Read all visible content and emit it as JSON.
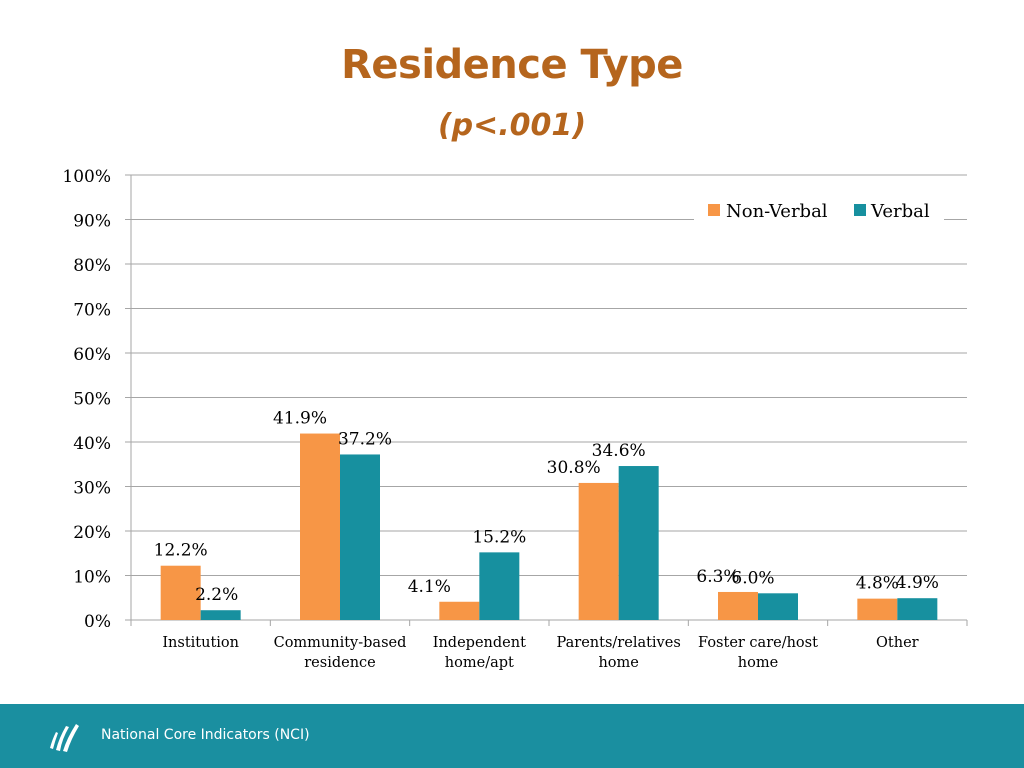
{
  "slide": {
    "title": "Residence Type",
    "subtitle": "p<.001",
    "footer_text": "National Core Indicators (NCI)"
  },
  "colors": {
    "title": "#b5651d",
    "non_verbal": "#f79646",
    "verbal": "#17909f",
    "footer": "#1a8fa0",
    "grid": "#a6a6a6"
  },
  "chart_data": {
    "type": "bar",
    "categories": [
      [
        "Institution"
      ],
      [
        "Community-based",
        "residence"
      ],
      [
        "Independent",
        "home/apt"
      ],
      [
        "Parents/relatives",
        "home"
      ],
      [
        "Foster care/host",
        "home"
      ],
      [
        "Other"
      ]
    ],
    "series": [
      {
        "name": "Non-Verbal",
        "values": [
          12.2,
          41.9,
          4.1,
          30.8,
          6.3,
          4.8
        ],
        "labels": [
          "12.2%",
          "41.9%",
          "4.1%",
          "30.8%",
          "6.3%",
          "4.8%"
        ],
        "color": "#f79646"
      },
      {
        "name": "Verbal",
        "values": [
          2.2,
          37.2,
          15.2,
          34.6,
          6.0,
          4.9
        ],
        "labels": [
          "2.2%",
          "37.2%",
          "15.2%",
          "34.6%",
          "6.0%",
          "4.9%"
        ],
        "color": "#17909f"
      }
    ],
    "yticks": [
      "0%",
      "10%",
      "20%",
      "30%",
      "40%",
      "50%",
      "60%",
      "70%",
      "80%",
      "90%",
      "100%"
    ],
    "ylim": [
      0,
      100
    ],
    "grid": true,
    "legend_position": "top-right"
  }
}
